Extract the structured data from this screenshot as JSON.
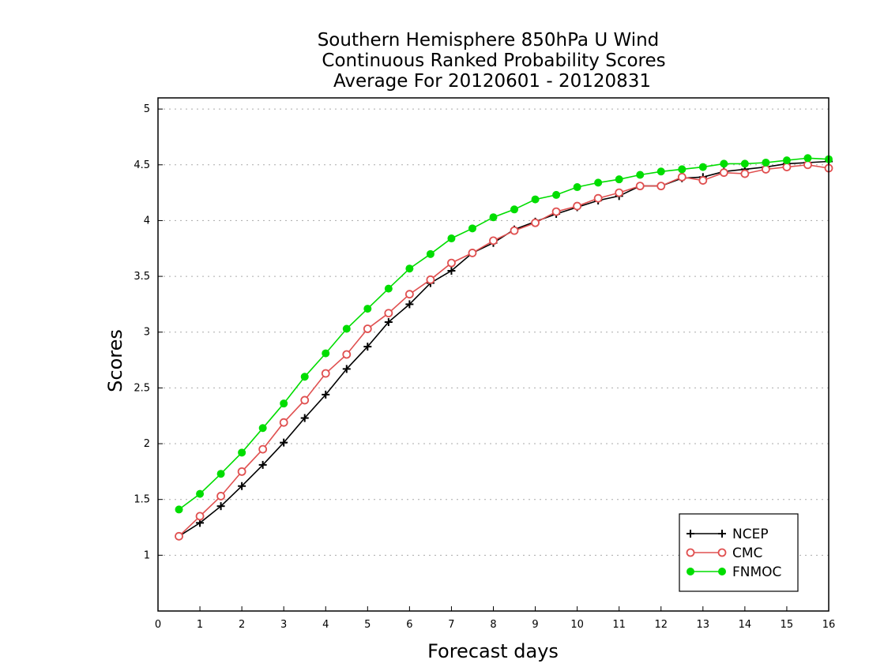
{
  "chart_data": {
    "type": "line",
    "title": [
      "Southern Hemisphere 850hPa U Wind",
      "Continuous Ranked Probability Scores",
      "Average For 20120601 - 20120831"
    ],
    "xlabel": "Forecast days",
    "ylabel": "Scores",
    "xlim": [
      0,
      16
    ],
    "ylim": [
      0.5,
      5.1
    ],
    "x_ticks": [
      "0",
      "1",
      "2",
      "3",
      "4",
      "5",
      "6",
      "7",
      "8",
      "9",
      "10",
      "11",
      "12",
      "13",
      "14",
      "15",
      "16"
    ],
    "y_ticks": [
      "1",
      "1.5",
      "2",
      "2.5",
      "3",
      "3.5",
      "4",
      "4.5",
      "5"
    ],
    "grid": "horizontal dotted",
    "legend_position": "bottom-right",
    "x": [
      0.5,
      1,
      1.5,
      2,
      2.5,
      3,
      3.5,
      4,
      4.5,
      5,
      5.5,
      6,
      6.5,
      7,
      7.5,
      8,
      8.5,
      9,
      9.5,
      10,
      10.5,
      11,
      11.5,
      12,
      12.5,
      13,
      13.5,
      14,
      14.5,
      15,
      15.5,
      16
    ],
    "series": [
      {
        "name": "NCEP",
        "color": "#000000",
        "marker": "plus",
        "values": [
          1.17,
          1.29,
          1.44,
          1.62,
          1.81,
          2.01,
          2.23,
          2.44,
          2.67,
          2.87,
          3.09,
          3.25,
          3.44,
          3.55,
          3.71,
          3.8,
          3.92,
          3.99,
          4.06,
          4.12,
          4.18,
          4.22,
          4.31,
          4.31,
          4.38,
          4.39,
          4.44,
          4.46,
          4.48,
          4.51,
          4.52,
          4.53
        ]
      },
      {
        "name": "CMC",
        "color": "#e05050",
        "marker": "open-circle",
        "values": [
          1.17,
          1.35,
          1.53,
          1.75,
          1.95,
          2.19,
          2.39,
          2.63,
          2.8,
          3.03,
          3.17,
          3.34,
          3.47,
          3.62,
          3.71,
          3.82,
          3.91,
          3.98,
          4.08,
          4.13,
          4.2,
          4.25,
          4.31,
          4.31,
          4.39,
          4.36,
          4.43,
          4.42,
          4.46,
          4.48,
          4.5,
          4.47
        ]
      },
      {
        "name": "FNMOC",
        "color": "#00dd00",
        "marker": "filled-circle",
        "values": [
          1.41,
          1.55,
          1.73,
          1.92,
          2.14,
          2.36,
          2.6,
          2.81,
          3.03,
          3.21,
          3.39,
          3.57,
          3.7,
          3.84,
          3.93,
          4.03,
          4.1,
          4.19,
          4.23,
          4.3,
          4.34,
          4.37,
          4.41,
          4.44,
          4.46,
          4.48,
          4.51,
          4.51,
          4.52,
          4.54,
          4.56,
          4.55
        ]
      }
    ]
  }
}
